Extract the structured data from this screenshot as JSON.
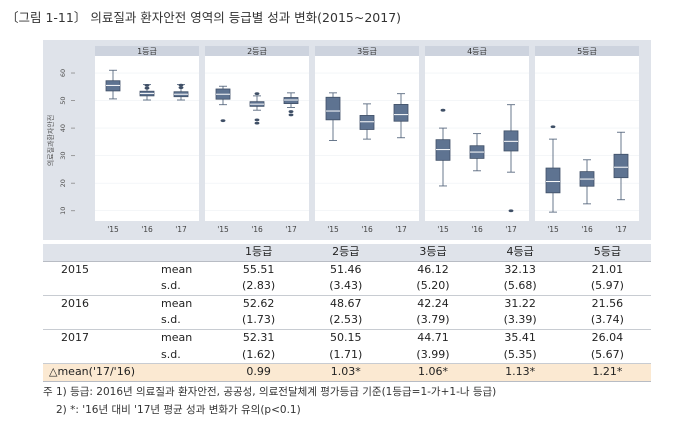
{
  "title": "〔그림 1-11〕 의료질과 환자안전 영역의 등급별 성과 변화(2015~2017)",
  "chart_data": {
    "type": "box",
    "ylabel": "의료질과환자안전",
    "y_ticks": [
      10,
      20,
      30,
      40,
      50,
      60
    ],
    "ylim": [
      7,
      64
    ],
    "x_labels": [
      "'15",
      "'16",
      "'17"
    ],
    "panels": [
      {
        "label": "1등급",
        "boxes": [
          {
            "q1": 53.5,
            "med": 55.5,
            "q3": 57.2,
            "wlo": 50.6,
            "whi": 61.0,
            "outliers": []
          },
          {
            "q1": 51.7,
            "med": 52.6,
            "q3": 53.4,
            "wlo": 50.2,
            "whi": 55.8,
            "outliers": [
              54.5,
              55.5
            ]
          },
          {
            "q1": 51.4,
            "med": 52.3,
            "q3": 53.2,
            "wlo": 50.2,
            "whi": 55.8,
            "outliers": [
              54.7,
              55.6
            ]
          }
        ]
      },
      {
        "label": "2등급",
        "boxes": [
          {
            "q1": 50.5,
            "med": 52.3,
            "q3": 54.2,
            "wlo": 48.5,
            "whi": 55.2,
            "outliers": [
              42.7
            ]
          },
          {
            "q1": 47.9,
            "med": 48.7,
            "q3": 49.6,
            "wlo": 46.5,
            "whi": 51.7,
            "outliers": [
              43.0,
              41.8,
              52.5
            ]
          },
          {
            "q1": 48.9,
            "med": 50.2,
            "q3": 51.1,
            "wlo": 47.5,
            "whi": 52.8,
            "outliers": [
              46.0,
              44.8
            ]
          }
        ]
      },
      {
        "label": "3등급",
        "boxes": [
          {
            "q1": 43.0,
            "med": 46.2,
            "q3": 51.2,
            "wlo": 35.5,
            "whi": 52.8,
            "outliers": []
          },
          {
            "q1": 39.5,
            "med": 42.3,
            "q3": 44.6,
            "wlo": 36.0,
            "whi": 48.8,
            "outliers": []
          },
          {
            "q1": 42.5,
            "med": 44.9,
            "q3": 48.6,
            "wlo": 36.5,
            "whi": 52.5,
            "outliers": []
          }
        ]
      },
      {
        "label": "4등급",
        "boxes": [
          {
            "q1": 28.3,
            "med": 32.2,
            "q3": 35.8,
            "wlo": 19.0,
            "whi": 40.0,
            "outliers": [
              46.5
            ]
          },
          {
            "q1": 29.0,
            "med": 31.3,
            "q3": 33.6,
            "wlo": 24.5,
            "whi": 38.0,
            "outliers": []
          },
          {
            "q1": 31.7,
            "med": 35.2,
            "q3": 39.0,
            "wlo": 24.0,
            "whi": 48.5,
            "outliers": [
              10.0
            ]
          }
        ]
      },
      {
        "label": "5등급",
        "boxes": [
          {
            "q1": 16.5,
            "med": 20.6,
            "q3": 25.5,
            "wlo": 9.5,
            "whi": 36.0,
            "outliers": [
              40.5
            ]
          },
          {
            "q1": 18.9,
            "med": 21.5,
            "q3": 24.2,
            "wlo": 12.5,
            "whi": 28.5,
            "outliers": []
          },
          {
            "q1": 22.0,
            "med": 25.8,
            "q3": 30.5,
            "wlo": 14.0,
            "whi": 38.5,
            "outliers": []
          }
        ]
      }
    ]
  },
  "table": {
    "headers": [
      "1등급",
      "2등급",
      "3등급",
      "4등급",
      "5등급"
    ],
    "rows": [
      {
        "year": "2015",
        "stat": "mean",
        "values": [
          "55.51",
          "51.46",
          "46.12",
          "32.13",
          "21.01"
        ]
      },
      {
        "year": "",
        "stat": "s.d.",
        "values": [
          "(2.83)",
          "(3.43)",
          "(5.20)",
          "(5.68)",
          "(5.97)"
        ]
      },
      {
        "year": "2016",
        "stat": "mean",
        "values": [
          "52.62",
          "48.67",
          "42.24",
          "31.22",
          "21.56"
        ]
      },
      {
        "year": "",
        "stat": "s.d.",
        "values": [
          "(1.73)",
          "(2.53)",
          "(3.79)",
          "(3.39)",
          "(3.74)"
        ]
      },
      {
        "year": "2017",
        "stat": "mean",
        "values": [
          "52.31",
          "50.15",
          "44.71",
          "35.41",
          "26.04"
        ]
      },
      {
        "year": "",
        "stat": "s.d.",
        "values": [
          "(1.62)",
          "(1.71)",
          "(3.99)",
          "(5.35)",
          "(5.67)"
        ]
      }
    ],
    "delta_label": "△mean('17/'16)",
    "delta_values": [
      "0.99",
      "1.03*",
      "1.06*",
      "1.13*",
      "1.21*"
    ]
  },
  "notes": {
    "note1": "주 1) 등급: 2016년 의료질과 환자안전, 공공성, 의료전달체계 평가등급 기준(1등급=1-가+1-나 등급)",
    "note2": "2) *: '16년 대비 '17년 평균 성과 변화가 유의(p<0.1)"
  }
}
